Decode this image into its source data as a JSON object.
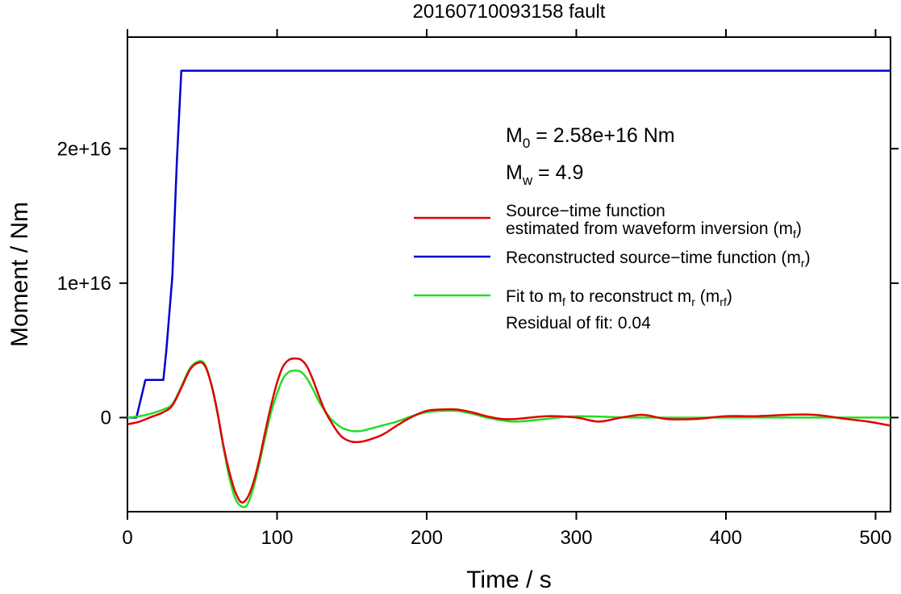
{
  "chart_data": {
    "type": "line",
    "title": "20160710093158 fault",
    "xlabel": "Time / s",
    "ylabel": "Moment / Nm",
    "xlim": [
      0,
      510
    ],
    "ylim": [
      -7000000000000000.0,
      2.83e+16
    ],
    "xticks": [
      0,
      100,
      200,
      300,
      400,
      500
    ],
    "xtick_labels": [
      "0",
      "100",
      "200",
      "300",
      "400",
      "500"
    ],
    "yticks": [
      0,
      1e+16,
      2e+16
    ],
    "ytick_labels": [
      "0",
      "1e+16",
      "2e+16"
    ],
    "grid": false,
    "annotations": {
      "m0_main": "M",
      "m0_sub": "0",
      "m0_rest": " = 2.58e+16 Nm",
      "mw_main": "M",
      "mw_sub": "w",
      "mw_rest": " = 4.9",
      "residual": "Residual of fit: 0.04"
    },
    "legend": {
      "placement": "right",
      "entries": [
        {
          "line1": "Source−time function",
          "line2_pre": "estimated from waveform inversion (m",
          "line2_sub": "f",
          "line2_post": ")",
          "color": "#e00000"
        },
        {
          "pre": "Reconstructed source−time function (m",
          "sub": "r",
          "post": ")",
          "color": "#0000cc"
        },
        {
          "pre": "Fit to m",
          "sub1": "f",
          "mid": " to reconstruct m",
          "sub2": "r",
          "mid2": " (m",
          "sub3": "rf",
          "post": ")",
          "color": "#22dd22"
        }
      ]
    },
    "series": [
      {
        "key": "mf",
        "color": "#e00000",
        "x": [
          0,
          8,
          16,
          24,
          30,
          36,
          42,
          48,
          52,
          56,
          60,
          64,
          68,
          72,
          76,
          80,
          84,
          88,
          92,
          96,
          100,
          104,
          108,
          112,
          116,
          120,
          124,
          128,
          132,
          136,
          140,
          144,
          150,
          156,
          160,
          170,
          180,
          190,
          200,
          210,
          220,
          230,
          240,
          250,
          260,
          280,
          300,
          315,
          330,
          345,
          360,
          380,
          400,
          420,
          440,
          460,
          480,
          495,
          510
        ],
        "y": [
          -500000000000000.0,
          -300000000000000.0,
          50000000000000.0,
          400000000000000.0,
          900000000000000.0,
          2200000000000000.0,
          3600000000000000.0,
          4100000000000000.0,
          3800000000000000.0,
          2500000000000000.0,
          500000000000000.0,
          -2000000000000000.0,
          -4000000000000000.0,
          -5500000000000000.0,
          -6300000000000000.0,
          -6000000000000000.0,
          -4900000000000000.0,
          -3200000000000000.0,
          -1100000000000000.0,
          900000000000000.0,
          2600000000000000.0,
          3800000000000000.0,
          4300000000000000.0,
          4400000000000000.0,
          4300000000000000.0,
          3800000000000000.0,
          2800000000000000.0,
          1600000000000000.0,
          500000000000000.0,
          -300000000000000.0,
          -1000000000000000.0,
          -1500000000000000.0,
          -1800000000000000.0,
          -1800000000000000.0,
          -1700000000000000.0,
          -1300000000000000.0,
          -600000000000000.0,
          50000000000000.0,
          500000000000000.0,
          600000000000000.0,
          600000000000000.0,
          400000000000000.0,
          100000000000000.0,
          -100000000000000.0,
          -100000000000000.0,
          100000000000000.0,
          0,
          -300000000000000.0,
          0,
          200000000000000.0,
          -100000000000000.0,
          -100000000000000.0,
          100000000000000.0,
          100000000000000.0,
          200000000000000.0,
          200000000000000.0,
          -100000000000000.0,
          -300000000000000.0,
          -600000000000000.0
        ]
      },
      {
        "key": "mr",
        "color": "#0000cc",
        "x": [
          0,
          6,
          12,
          24,
          26,
          30,
          33,
          36,
          510
        ],
        "y": [
          0,
          0,
          2800000000000000.0,
          2800000000000000.0,
          5000000000000000.0,
          1.05e+16,
          1.9e+16,
          2.58e+16,
          2.58e+16
        ]
      },
      {
        "key": "mrf",
        "color": "#22dd22",
        "x": [
          0,
          8,
          16,
          24,
          30,
          36,
          42,
          48,
          52,
          56,
          60,
          64,
          68,
          72,
          76,
          80,
          84,
          88,
          92,
          96,
          100,
          104,
          108,
          112,
          116,
          120,
          124,
          128,
          132,
          136,
          140,
          144,
          150,
          156,
          160,
          170,
          180,
          190,
          200,
          210,
          220,
          230,
          240,
          250,
          260,
          280,
          300,
          340,
          400,
          450,
          510
        ],
        "y": [
          0,
          100000000000000.0,
          300000000000000.0,
          600000000000000.0,
          1000000000000000.0,
          2300000000000000.0,
          3700000000000000.0,
          4200000000000000.0,
          3900000000000000.0,
          2500000000000000.0,
          400000000000000.0,
          -2100000000000000.0,
          -4400000000000000.0,
          -6000000000000000.0,
          -6600000000000000.0,
          -6500000000000000.0,
          -5300000000000000.0,
          -3500000000000000.0,
          -1500000000000000.0,
          400000000000000.0,
          1800000000000000.0,
          2900000000000000.0,
          3400000000000000.0,
          3500000000000000.0,
          3400000000000000.0,
          2900000000000000.0,
          2100000000000000.0,
          1200000000000000.0,
          500000000000000.0,
          -100000000000000.0,
          -500000000000000.0,
          -800000000000000.0,
          -1000000000000000.0,
          -1000000000000000.0,
          -900000000000000.0,
          -600000000000000.0,
          -300000000000000.0,
          100000000000000.0,
          400000000000000.0,
          500000000000000.0,
          500000000000000.0,
          300000000000000.0,
          0,
          -200000000000000.0,
          -300000000000000.0,
          -100000000000000.0,
          100000000000000.0,
          0,
          0,
          0,
          0
        ]
      }
    ]
  }
}
